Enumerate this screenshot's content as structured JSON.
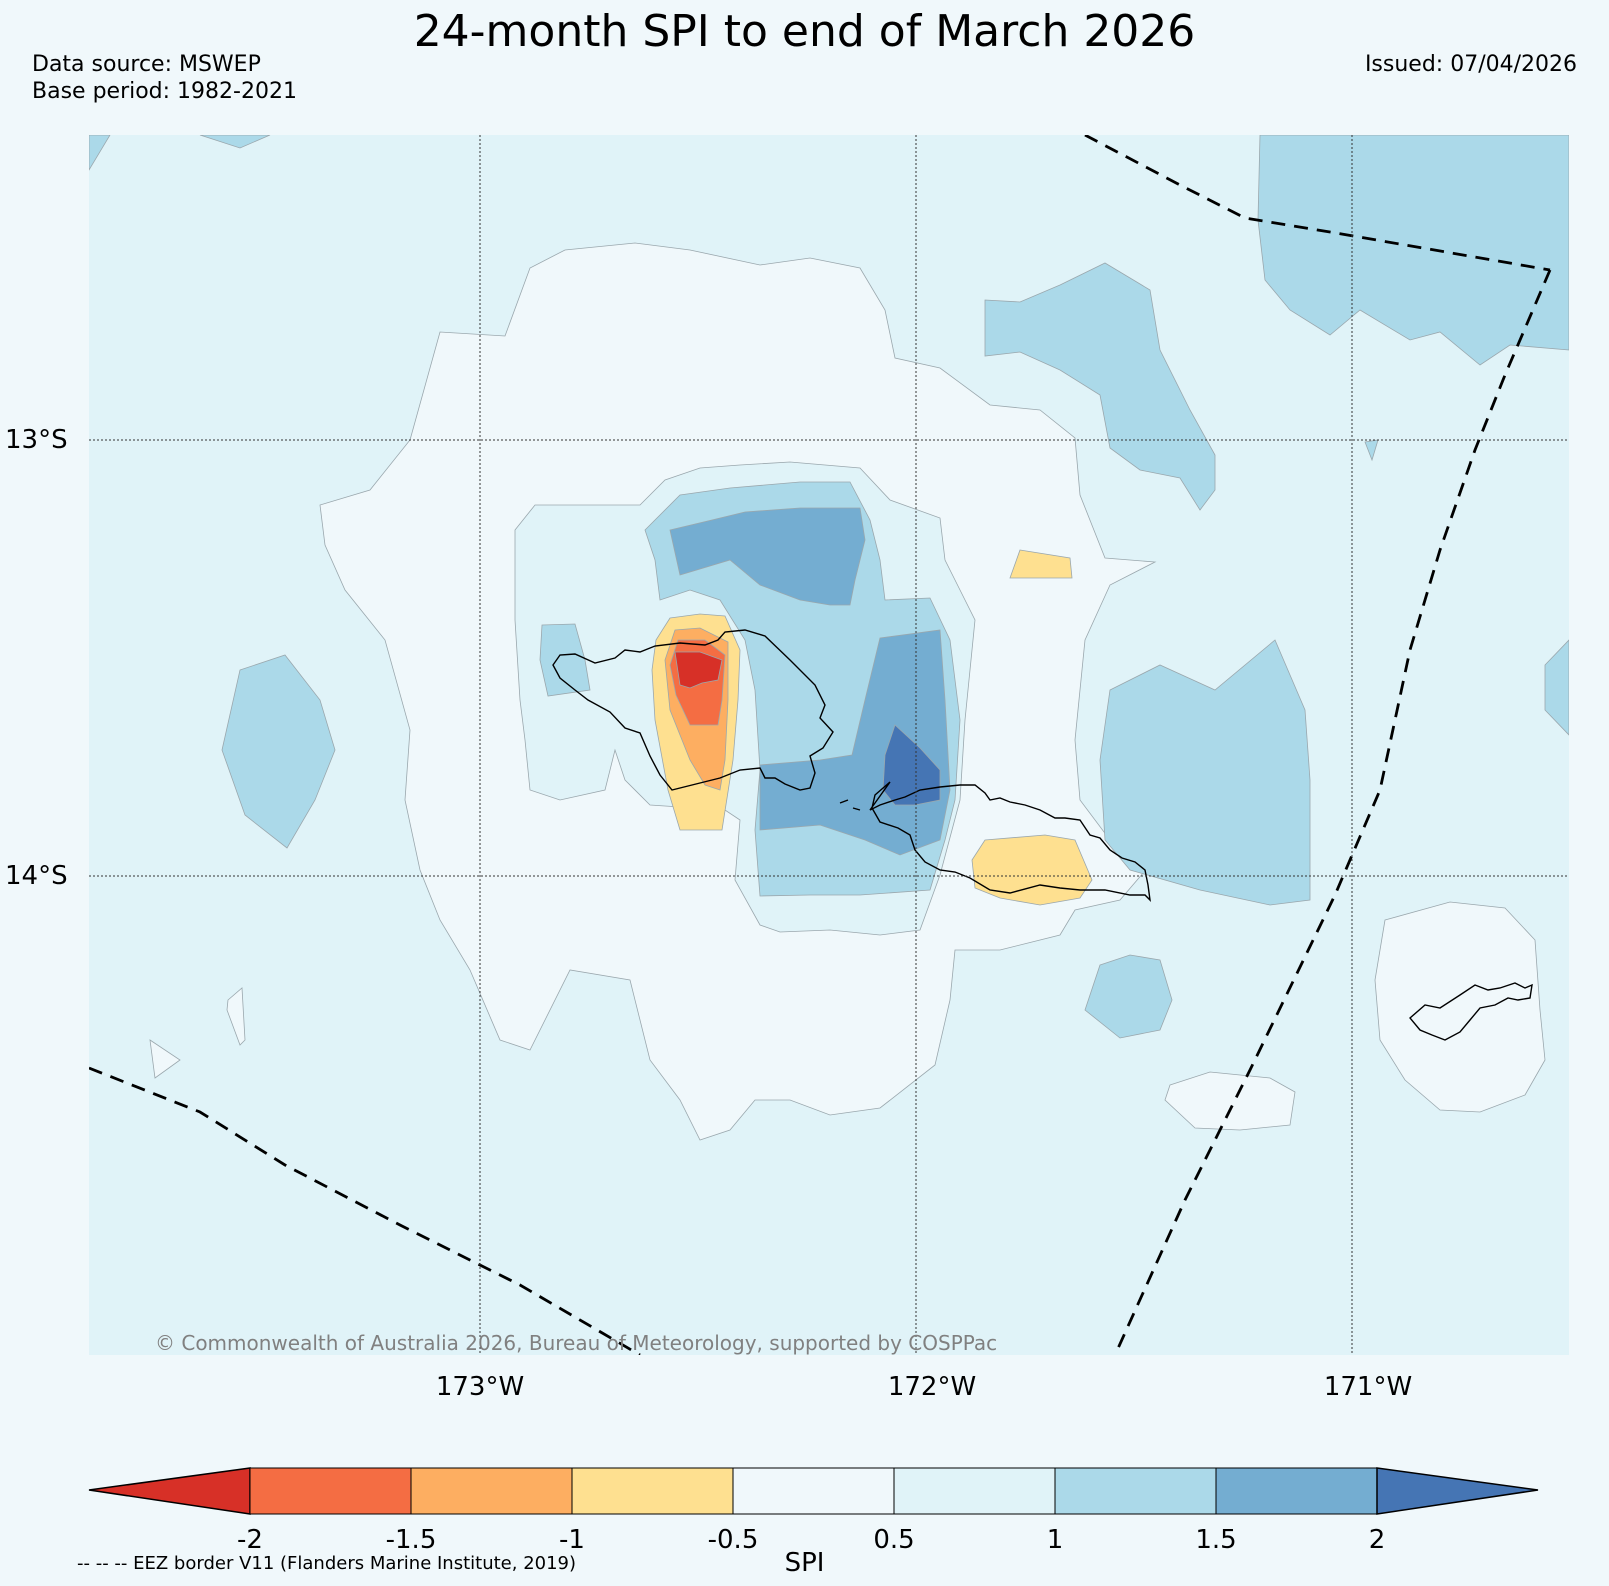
{
  "title": "24-month SPI to end of March 2026",
  "data_source": "Data source: MSWEP",
  "base_period": "Base period: 1982-2021",
  "issued": "Issued: 07/04/2026",
  "copyright": "© Commonwealth of Australia 2026, Bureau of Meteorology, supported by COSPPac",
  "lat_labels": [
    "13°S",
    "14°S"
  ],
  "lon_labels": [
    "173°W",
    "172°W",
    "171°W"
  ],
  "colorbar": {
    "label": "SPI",
    "ticks": [
      "-2",
      "-1.5",
      "-1",
      "-0.5",
      "0.5",
      "1",
      "1.5",
      "2"
    ],
    "colors": [
      "#d73027",
      "#f46d43",
      "#fdae61",
      "#fee090",
      "#f0f8fb",
      "#e0f3f8",
      "#abd9e9",
      "#74add1",
      "#4575b4"
    ]
  },
  "eez_note": "-- -- -- EEZ border V11 (Flanders Marine Institute, 2019)",
  "colors": {
    "background": "#f0f8fb",
    "wet_1": "#e0f3f8",
    "wet_15": "#abd9e9",
    "wet_2": "#74add1",
    "wet_extreme": "#4575b4",
    "dry_05": "#fee090",
    "dry_1": "#fdae61",
    "dry_15": "#f46d43",
    "dry_extreme": "#d73027"
  }
}
